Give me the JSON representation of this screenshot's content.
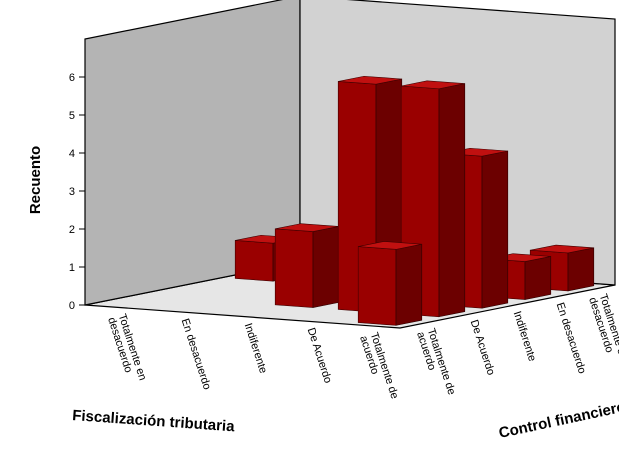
{
  "chart_data": {
    "type": "bar3d",
    "y_label": "Recuento",
    "x_label": "Fiscalización tributaria",
    "depth_label": "Control financiero",
    "categories": [
      "Totalmente en desacuerdo",
      "En desacuerdo",
      "Indiferente",
      "De Acuerdo",
      "Totalmente de acuerdo"
    ],
    "series": [
      {
        "name": "Totalmente de acuerdo",
        "values": [
          0,
          0,
          0,
          0,
          2
        ]
      },
      {
        "name": "De Acuerdo",
        "values": [
          0,
          0,
          2,
          6,
          6
        ]
      },
      {
        "name": "Indiferente",
        "values": [
          0,
          0,
          1,
          5,
          4
        ]
      },
      {
        "name": "En desacuerdo",
        "values": [
          1,
          0,
          0,
          0,
          1
        ]
      },
      {
        "name": "Totalmente en desacuerdo",
        "values": [
          0,
          0,
          0,
          0,
          1
        ]
      }
    ],
    "color": "#9a0000",
    "ylim": [
      0,
      7
    ],
    "yticks": [
      0,
      1,
      2,
      3,
      4,
      5,
      6
    ]
  }
}
